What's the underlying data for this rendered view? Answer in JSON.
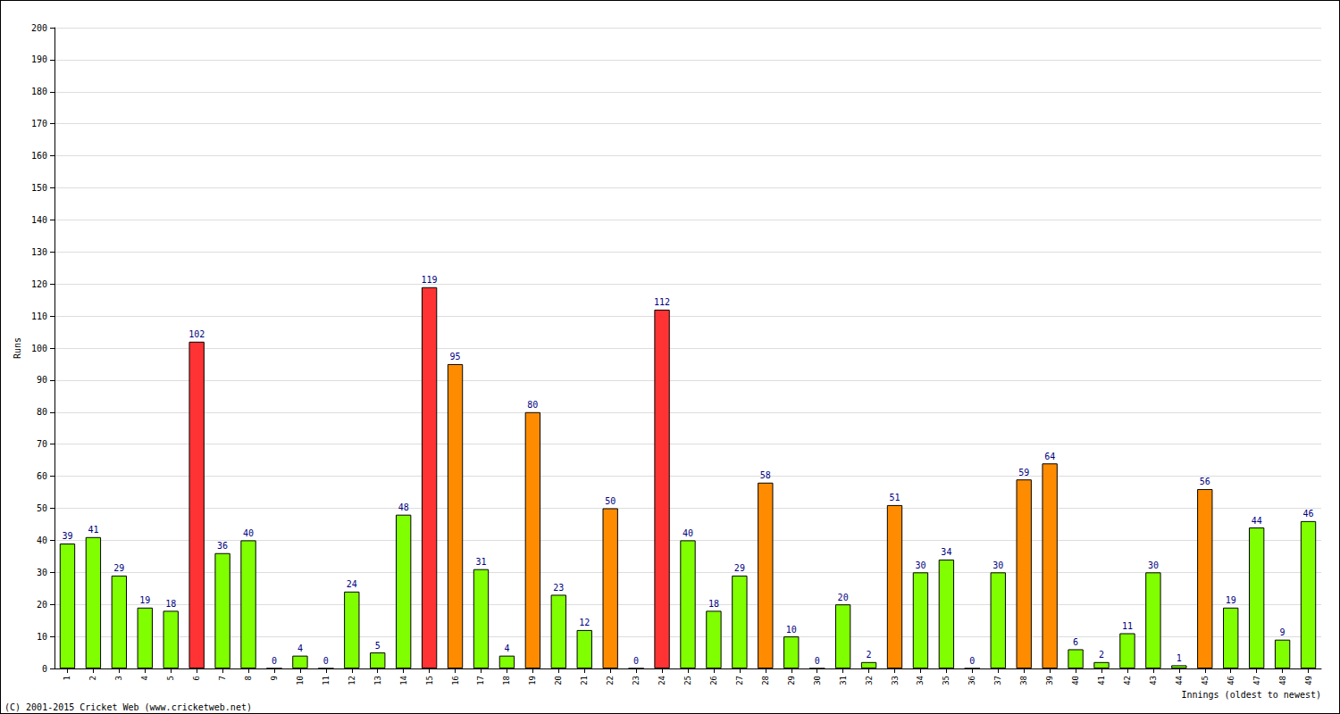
{
  "chart_data": {
    "type": "bar",
    "y_label": "Runs",
    "x_label": "Innings (oldest to newest)",
    "annotations": [
      "(C) 2001-2015 Cricket Web (www.cricketweb.net)"
    ],
    "categories": [
      "1",
      "2",
      "3",
      "4",
      "5",
      "6",
      "7",
      "8",
      "9",
      "10",
      "11",
      "12",
      "13",
      "14",
      "15",
      "16",
      "17",
      "18",
      "19",
      "20",
      "21",
      "22",
      "23",
      "24",
      "25",
      "26",
      "27",
      "28",
      "29",
      "30",
      "31",
      "32",
      "33",
      "34",
      "35",
      "36",
      "37",
      "38",
      "39",
      "40",
      "41",
      "42",
      "43",
      "44",
      "45",
      "46",
      "47",
      "48",
      "49"
    ],
    "values": [
      39,
      41,
      29,
      19,
      18,
      102,
      36,
      40,
      0,
      4,
      0,
      24,
      5,
      48,
      119,
      95,
      31,
      4,
      80,
      23,
      12,
      50,
      0,
      112,
      40,
      18,
      29,
      58,
      10,
      0,
      20,
      2,
      51,
      30,
      34,
      0,
      30,
      59,
      64,
      6,
      2,
      11,
      30,
      1,
      56,
      19,
      44,
      9,
      46
    ],
    "colors": [
      "#80ff00",
      "#80ff00",
      "#80ff00",
      "#80ff00",
      "#80ff00",
      "#ff3333",
      "#80ff00",
      "#80ff00",
      "#80ff00",
      "#80ff00",
      "#80ff00",
      "#80ff00",
      "#80ff00",
      "#80ff00",
      "#ff3333",
      "#ff8c00",
      "#80ff00",
      "#80ff00",
      "#ff8c00",
      "#80ff00",
      "#80ff00",
      "#ff8c00",
      "#80ff00",
      "#ff3333",
      "#80ff00",
      "#80ff00",
      "#80ff00",
      "#ff8c00",
      "#80ff00",
      "#80ff00",
      "#80ff00",
      "#80ff00",
      "#ff8c00",
      "#80ff00",
      "#80ff00",
      "#80ff00",
      "#80ff00",
      "#ff8c00",
      "#ff8c00",
      "#80ff00",
      "#80ff00",
      "#80ff00",
      "#80ff00",
      "#80ff00",
      "#ff8c00",
      "#80ff00",
      "#80ff00",
      "#80ff00",
      "#80ff00"
    ],
    "ylim": [
      0,
      200
    ],
    "yticks": [
      0,
      10,
      20,
      30,
      40,
      50,
      60,
      70,
      80,
      90,
      100,
      110,
      120,
      130,
      140,
      150,
      160,
      170,
      180,
      190,
      200
    ],
    "grid": true,
    "data_labels": true
  }
}
